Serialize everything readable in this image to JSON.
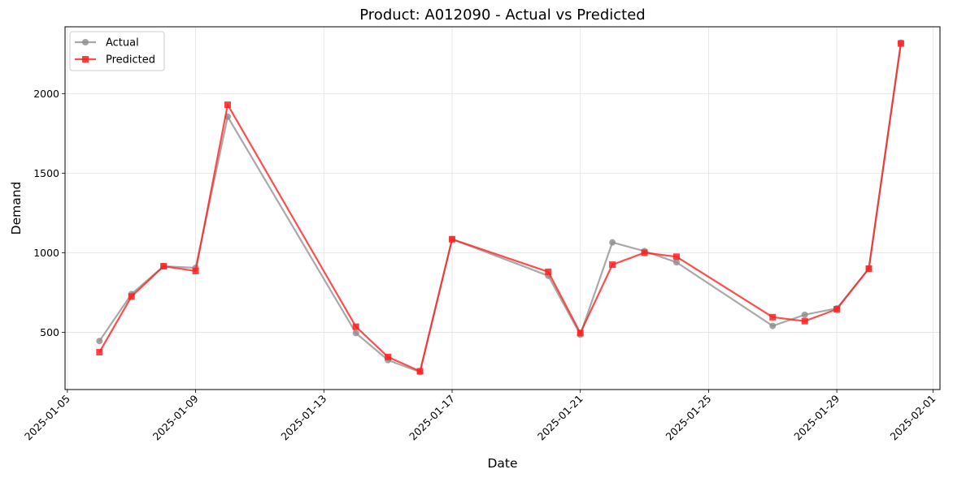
{
  "chart_data": {
    "type": "line",
    "title": "Product: A012090 - Actual vs Predicted",
    "xlabel": "Date",
    "ylabel": "Demand",
    "x_ticks": [
      "2025-01-05",
      "2025-01-09",
      "2025-01-13",
      "2025-01-17",
      "2025-01-21",
      "2025-01-25",
      "2025-01-29",
      "2025-02-01"
    ],
    "y_ticks": [
      500,
      1000,
      1500,
      2000
    ],
    "xlim": [
      "2025-01-05",
      "2025-02-01"
    ],
    "ylim": [
      140,
      2420
    ],
    "grid": true,
    "legend_position": "top-left",
    "series": [
      {
        "name": "Actual",
        "color": "#8c8c8c",
        "marker": "circle",
        "points": [
          [
            "2025-01-06",
            445
          ],
          [
            "2025-01-07",
            740
          ],
          [
            "2025-01-08",
            915
          ],
          [
            "2025-01-09",
            905
          ],
          [
            "2025-01-10",
            1855
          ],
          [
            "2025-01-14",
            495
          ],
          [
            "2025-01-15",
            325
          ],
          [
            "2025-01-16",
            250
          ],
          [
            "2025-01-17",
            1085
          ],
          [
            "2025-01-20",
            855
          ],
          [
            "2025-01-21",
            485
          ],
          [
            "2025-01-22",
            1065
          ],
          [
            "2025-01-23",
            1010
          ],
          [
            "2025-01-24",
            940
          ],
          [
            "2025-01-27",
            540
          ],
          [
            "2025-01-28",
            610
          ],
          [
            "2025-01-29",
            650
          ],
          [
            "2025-01-30",
            900
          ],
          [
            "2025-01-31",
            2320
          ]
        ]
      },
      {
        "name": "Predicted",
        "color": "#ff2020",
        "marker": "square",
        "points": [
          [
            "2025-01-06",
            375
          ],
          [
            "2025-01-07",
            725
          ],
          [
            "2025-01-08",
            915
          ],
          [
            "2025-01-09",
            885
          ],
          [
            "2025-01-10",
            1930
          ],
          [
            "2025-01-14",
            535
          ],
          [
            "2025-01-15",
            345
          ],
          [
            "2025-01-16",
            255
          ],
          [
            "2025-01-17",
            1085
          ],
          [
            "2025-01-20",
            880
          ],
          [
            "2025-01-21",
            495
          ],
          [
            "2025-01-22",
            925
          ],
          [
            "2025-01-23",
            1000
          ],
          [
            "2025-01-24",
            975
          ],
          [
            "2025-01-27",
            595
          ],
          [
            "2025-01-28",
            570
          ],
          [
            "2025-01-29",
            645
          ],
          [
            "2025-01-30",
            900
          ],
          [
            "2025-01-31",
            2315
          ]
        ]
      }
    ]
  }
}
